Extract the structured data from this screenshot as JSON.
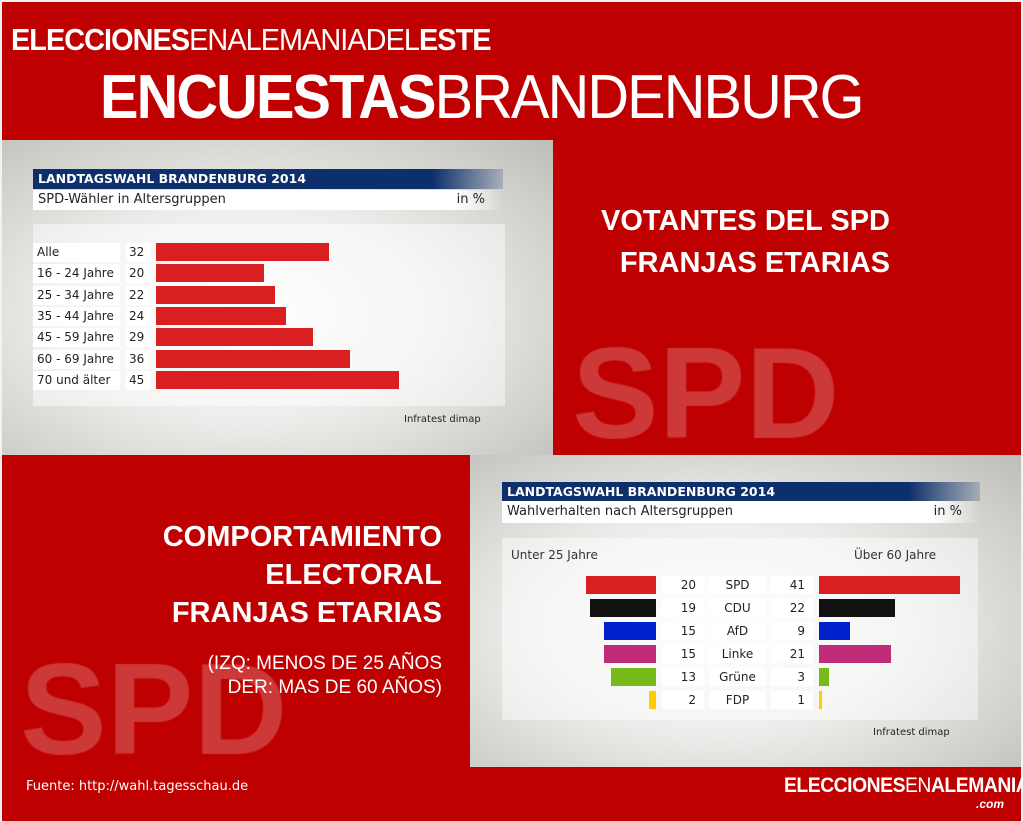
{
  "header": {
    "line1_bold": "ELECCIONES",
    "line1_light": "ENALEMANIA",
    "line1_light2": "DEL",
    "line1_bold2": "ESTE",
    "line2_bold": "ENCUESTAS",
    "line2_light": "BRANDENBURG"
  },
  "colors": {
    "background_red": "#bf0000",
    "header_navy": "#0d2f6b",
    "bar_red": "#d91f1f"
  },
  "section1": {
    "title_line1": "VOTANTES DEL SPD",
    "title_line2": "FRANJAS ETARIAS",
    "watermark": "SPD"
  },
  "section2": {
    "title_line1": "COMPORTAMIENTO",
    "title_line2": "ELECTORAL",
    "title_line3": "FRANJAS ETARIAS",
    "note_line1": "(IZQ: MENOS DE 25 AÑOS",
    "note_line2": "DER: MAS DE 60 AÑOS)",
    "watermark": "SPD"
  },
  "chart_data": [
    {
      "type": "bar",
      "orientation": "horizontal",
      "title": "LANDTAGSWAHL BRANDENBURG 2014",
      "subtitle": "SPD-Wähler in Altersgruppen",
      "unit": "in %",
      "source": "Infratest dimap",
      "categories": [
        "Alle",
        "16 - 24 Jahre",
        "25 - 34 Jahre",
        "35 - 44 Jahre",
        "45 - 59 Jahre",
        "60 - 69 Jahre",
        "70 und älter"
      ],
      "values": [
        32,
        20,
        22,
        24,
        29,
        36,
        45
      ],
      "color": "#d91f1f"
    },
    {
      "type": "bar",
      "orientation": "horizontal-diverging",
      "title": "LANDTAGSWAHL BRANDENBURG 2014",
      "subtitle": "Wahlverhalten nach Altersgruppen",
      "unit": "in %",
      "source": "Infratest dimap",
      "categories": [
        "SPD",
        "CDU",
        "AfD",
        "Linke",
        "Grüne",
        "FDP"
      ],
      "colors": [
        "#d91f1f",
        "#111111",
        "#0022cc",
        "#c02c78",
        "#77bb1a",
        "#ffcc00"
      ],
      "series": [
        {
          "name": "Unter 25 Jahre",
          "values": [
            20,
            19,
            15,
            15,
            13,
            2
          ]
        },
        {
          "name": "Über 60 Jahre",
          "values": [
            41,
            22,
            9,
            21,
            3,
            1
          ]
        }
      ]
    }
  ],
  "footer": {
    "source": "Fuente: http://wahl.tagesschau.de",
    "logo_bold": "ELECCIONES",
    "logo_light": "EN",
    "logo_bold2": "ALEMANIA",
    "logo_sub": ".com"
  }
}
